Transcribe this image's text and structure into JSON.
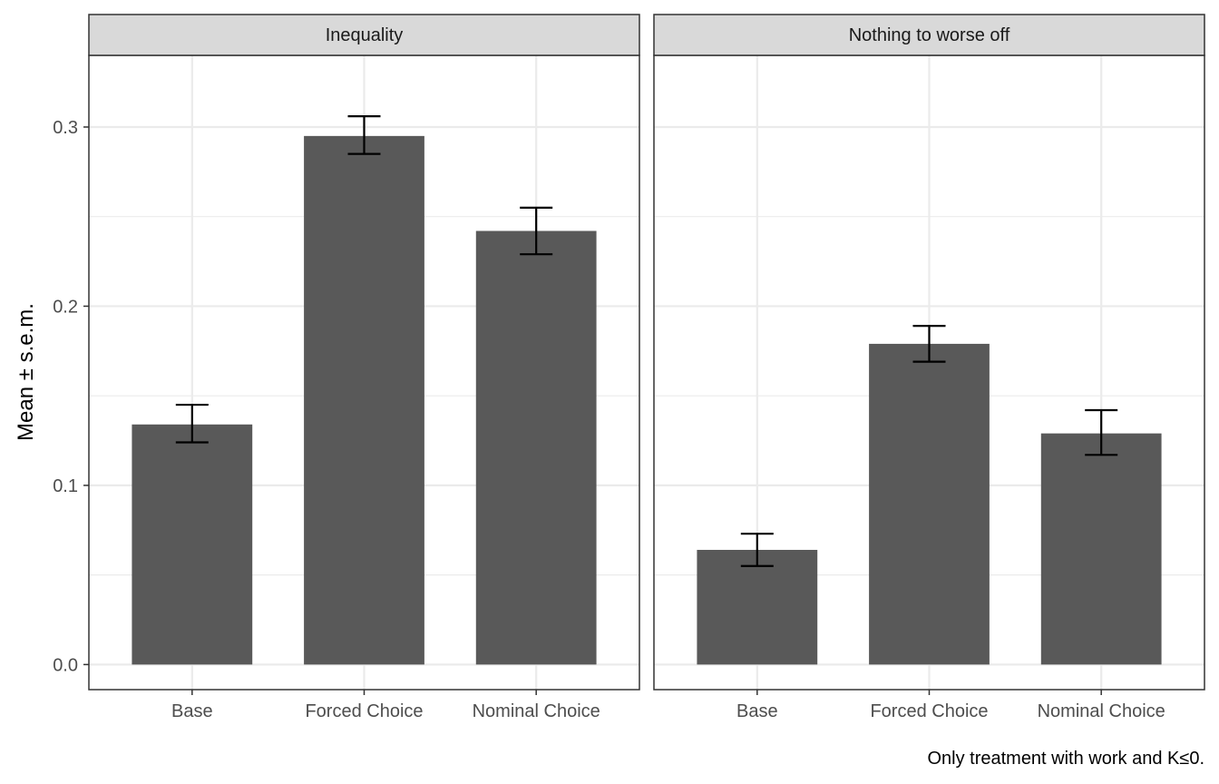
{
  "chart_data": {
    "type": "bar",
    "ylabel": "Mean ± s.e.m.",
    "xlabel": "",
    "caption": "Only treatment with work and K≤0.",
    "ylim": [
      -0.014,
      0.34
    ],
    "yticks": [
      0.0,
      0.1,
      0.2,
      0.3
    ],
    "ytick_labels": [
      "0.0",
      "0.1",
      "0.2",
      "0.3"
    ],
    "categories": [
      "Base",
      "Forced Choice",
      "Nominal Choice"
    ],
    "grid": true,
    "bar_color": "#595959",
    "panel_strip_color": "#d9d9d9",
    "gridline_color": "#ebebeb",
    "panels": [
      {
        "name": "Inequality",
        "values": [
          0.134,
          0.295,
          0.242
        ],
        "err_low": [
          0.124,
          0.285,
          0.229
        ],
        "err_high": [
          0.145,
          0.306,
          0.255
        ]
      },
      {
        "name": "Nothing to worse off",
        "values": [
          0.064,
          0.179,
          0.129
        ],
        "err_low": [
          0.055,
          0.169,
          0.117
        ],
        "err_high": [
          0.073,
          0.189,
          0.142
        ]
      }
    ]
  }
}
